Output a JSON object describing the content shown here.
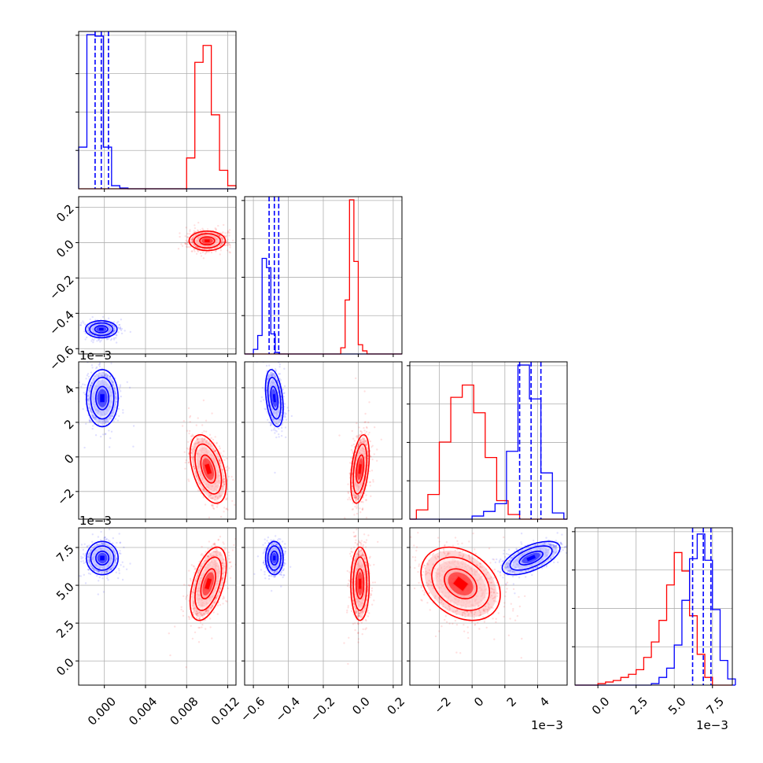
{
  "colors": {
    "blue": "#0000ff",
    "red": "#ff0000",
    "grid": "#b0b0b0",
    "axes": "#000000"
  },
  "chart_data": [
    {
      "type": "histogram",
      "panel": "p00",
      "param_index": 0,
      "xlim": [
        -0.0025,
        0.0128
      ],
      "grid": true,
      "series": [
        {
          "color": "blue",
          "bins": [
            -0.0025,
            -0.0017,
            -0.0009,
            -0.0001,
            0.0007,
            0.0015,
            0.0023,
            0.0031
          ],
          "counts": [
            0.27,
            1.0,
            0.99,
            0.27,
            0.02,
            0.005,
            0.0
          ],
          "quantiles": [
            -0.0009,
            -0.0003,
            0.0004
          ]
        },
        {
          "color": "red",
          "bins": [
            0.0072,
            0.008,
            0.0088,
            0.0096,
            0.0104,
            0.0112,
            0.012,
            0.0128
          ],
          "counts": [
            0.0,
            0.2,
            0.82,
            0.93,
            0.48,
            0.12,
            0.02
          ]
        }
      ]
    },
    {
      "type": "histogram",
      "panel": "p11",
      "param_index": 1,
      "xlim": [
        -0.65,
        0.25
      ],
      "grid": true,
      "series": [
        {
          "color": "blue",
          "bins": [
            -0.6,
            -0.575,
            -0.55,
            -0.525,
            -0.5,
            -0.475,
            -0.45,
            -0.425
          ],
          "counts": [
            0.03,
            0.12,
            0.62,
            0.56,
            0.13,
            0.01,
            0.0
          ],
          "quantiles": [
            -0.51,
            -0.48,
            -0.455
          ]
        },
        {
          "color": "red",
          "bins": [
            -0.1,
            -0.075,
            -0.05,
            -0.025,
            0.0,
            0.025,
            0.05,
            0.075
          ],
          "counts": [
            0.04,
            0.35,
            1.0,
            0.6,
            0.06,
            0.02,
            0.0
          ]
        }
      ]
    },
    {
      "type": "histogram",
      "panel": "p22",
      "param_index": 2,
      "xlim": [
        -0.0038,
        0.0058
      ],
      "grid": true,
      "series": [
        {
          "color": "red",
          "bins": [
            -0.0034,
            -0.0027,
            -0.002,
            -0.0013,
            -0.0006,
            0.0001,
            0.0008,
            0.0015,
            0.0022,
            0.0029
          ],
          "counts": [
            0.06,
            0.16,
            0.5,
            0.79,
            0.87,
            0.69,
            0.4,
            0.12,
            0.03
          ]
        },
        {
          "color": "blue",
          "bins": [
            0.0,
            0.0007,
            0.0014,
            0.0021,
            0.0028,
            0.0035,
            0.0042,
            0.0049,
            0.0056
          ],
          "counts": [
            0.02,
            0.05,
            0.1,
            0.44,
            1.0,
            0.78,
            0.3,
            0.04
          ],
          "quantiles": [
            0.0029,
            0.0036,
            0.0042
          ]
        }
      ]
    },
    {
      "type": "histogram",
      "panel": "p33",
      "param_index": 3,
      "xlim": [
        -0.0015,
        0.0088
      ],
      "grid": true,
      "series": [
        {
          "color": "red",
          "bins": [
            0.0,
            0.0005,
            0.001,
            0.0015,
            0.002,
            0.0025,
            0.003,
            0.0035,
            0.004,
            0.0045,
            0.005,
            0.0055,
            0.006,
            0.0065,
            0.007,
            0.0075
          ],
          "counts": [
            0.01,
            0.02,
            0.03,
            0.05,
            0.07,
            0.1,
            0.18,
            0.28,
            0.42,
            0.65,
            0.86,
            0.74,
            0.45,
            0.2,
            0.05
          ]
        },
        {
          "color": "blue",
          "bins": [
            0.0035,
            0.004,
            0.0045,
            0.005,
            0.0055,
            0.006,
            0.0065,
            0.007,
            0.0075,
            0.008,
            0.0085,
            0.009
          ],
          "counts": [
            0.01,
            0.05,
            0.11,
            0.26,
            0.55,
            0.82,
            0.98,
            0.81,
            0.49,
            0.16,
            0.04
          ],
          "quantiles": [
            0.0062,
            0.0069,
            0.0074
          ]
        }
      ]
    },
    {
      "type": "scatter",
      "panel": "p10",
      "xlim": [
        -0.0025,
        0.0128
      ],
      "ylim": [
        -0.63,
        0.26
      ],
      "contours": true,
      "series": [
        {
          "color": "blue",
          "center": [
            -0.0003,
            -0.49
          ],
          "sigma": [
            0.0007,
            0.022
          ],
          "rho": 0.0,
          "n": 700
        },
        {
          "color": "red",
          "center": [
            0.01,
            0.01
          ],
          "sigma": [
            0.0008,
            0.025
          ],
          "rho": 0.0,
          "n": 900
        }
      ]
    },
    {
      "type": "scatter",
      "panel": "p20",
      "xlim": [
        -0.0025,
        0.0128
      ],
      "ylim": [
        -0.0036,
        0.0055
      ],
      "contours": true,
      "series": [
        {
          "color": "blue",
          "center": [
            -0.0002,
            0.0034
          ],
          "sigma": [
            0.0007,
            0.00075
          ],
          "rho": 0.0,
          "n": 700
        },
        {
          "color": "red",
          "center": [
            0.0101,
            -0.0007
          ],
          "sigma": [
            0.0008,
            0.0009
          ],
          "rho": -0.45,
          "n": 1000
        }
      ]
    },
    {
      "type": "scatter",
      "panel": "p21",
      "xlim": [
        -0.65,
        0.25
      ],
      "ylim": [
        -0.0036,
        0.0055
      ],
      "contours": true,
      "series": [
        {
          "color": "blue",
          "center": [
            -0.48,
            0.0034
          ],
          "sigma": [
            0.023,
            0.00075
          ],
          "rho": -0.35,
          "n": 700
        },
        {
          "color": "red",
          "center": [
            0.01,
            -0.0007
          ],
          "sigma": [
            0.024,
            0.0009
          ],
          "rho": 0.4,
          "n": 1000
        }
      ]
    },
    {
      "type": "scatter",
      "panel": "p30",
      "xlim": [
        -0.0025,
        0.0128
      ],
      "ylim": [
        -0.0016,
        0.0088
      ],
      "contours": true,
      "series": [
        {
          "color": "blue",
          "center": [
            -0.0002,
            0.0068
          ],
          "sigma": [
            0.0007,
            0.0005
          ],
          "rho": 0.0,
          "n": 700
        },
        {
          "color": "red",
          "center": [
            0.0101,
            0.0051
          ],
          "sigma": [
            0.0008,
            0.0011
          ],
          "rho": 0.5,
          "n": 1000
        }
      ]
    },
    {
      "type": "scatter",
      "panel": "p31",
      "xlim": [
        -0.65,
        0.25
      ],
      "ylim": [
        -0.0016,
        0.0088
      ],
      "contours": true,
      "series": [
        {
          "color": "blue",
          "center": [
            -0.48,
            0.0068
          ],
          "sigma": [
            0.023,
            0.0005
          ],
          "rho": 0.0,
          "n": 700
        },
        {
          "color": "red",
          "center": [
            0.01,
            0.0051
          ],
          "sigma": [
            0.024,
            0.0011
          ],
          "rho": 0.0,
          "n": 1000
        }
      ]
    },
    {
      "type": "scatter",
      "panel": "p32",
      "xlim": [
        -0.0038,
        0.0058
      ],
      "ylim": [
        -0.0016,
        0.0088
      ],
      "contours": true,
      "series": [
        {
          "color": "blue",
          "center": [
            0.0036,
            0.0068
          ],
          "sigma": [
            0.0008,
            0.0005
          ],
          "rho": 0.6,
          "n": 700
        },
        {
          "color": "red",
          "center": [
            -0.0007,
            0.0051
          ],
          "sigma": [
            0.0011,
            0.0011
          ],
          "rho": -0.3,
          "n": 1000
        }
      ]
    }
  ],
  "axes": {
    "x0_ticks": [
      "0.000",
      "0.004",
      "0.008",
      "0.012"
    ],
    "x1_ticks": [
      "−0.6",
      "−0.4",
      "−0.2",
      "0.0",
      "0.2"
    ],
    "x2_ticks": [
      "−2",
      "0",
      "2",
      "4"
    ],
    "x3_ticks": [
      "0.0",
      "2.5",
      "5.0",
      "7.5"
    ],
    "y1_ticks": [
      "0.2",
      "0.0",
      "−0.2",
      "−0.4",
      "−0.6"
    ],
    "y2_ticks": [
      "4",
      "2",
      "0",
      "−2"
    ],
    "y3_ticks": [
      "7.5",
      "5.0",
      "2.5",
      "0.0"
    ],
    "offset_y2": "1e−3",
    "offset_y3": "1e−3",
    "offset_x2": "1e−3",
    "offset_x3": "1e−3"
  }
}
